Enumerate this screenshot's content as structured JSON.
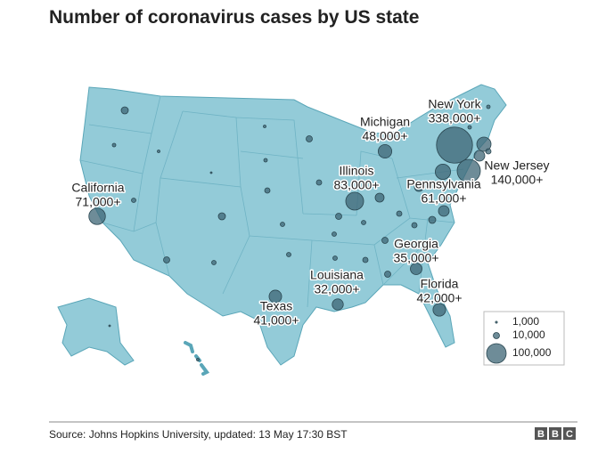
{
  "title": "Number of coronavirus cases by US state",
  "bubbles": [
    {
      "label": "New York",
      "value": 338000,
      "value_label": "338,000+"
    },
    {
      "label": "New Jersey",
      "value": 140000,
      "value_label": "140,000+"
    },
    {
      "label": "Illinois",
      "value": 83000,
      "value_label": "83,000+"
    },
    {
      "label": "California",
      "value": 71000,
      "value_label": "71,000+"
    },
    {
      "label": "Pennsylvania",
      "value": 61000,
      "value_label": "61,000+"
    },
    {
      "label": "Michigan",
      "value": 48000,
      "value_label": "48,000+"
    },
    {
      "label": "Florida",
      "value": 42000,
      "value_label": "42,000+"
    },
    {
      "label": "Texas",
      "value": 41000,
      "value_label": "41,000+"
    },
    {
      "label": "Georgia",
      "value": 35000,
      "value_label": "35,000+"
    },
    {
      "label": "Louisiana",
      "value": 32000,
      "value_label": "32,000+"
    }
  ],
  "legend": [
    {
      "value": 1000,
      "label": "1,000"
    },
    {
      "value": 10000,
      "label": "10,000"
    },
    {
      "value": 100000,
      "label": "100,000"
    }
  ],
  "source": "Source: Johns Hopkins University, updated: 13 May 17:30 BST",
  "logo": [
    "B",
    "B",
    "C"
  ]
}
